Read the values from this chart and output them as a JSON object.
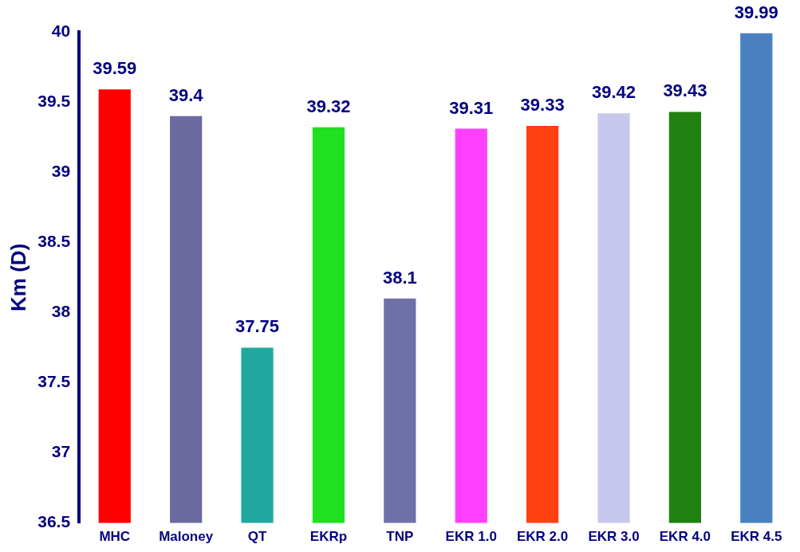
{
  "chart_data": {
    "type": "bar",
    "ylabel": "Km (D)",
    "categories": [
      "MHC",
      "Maloney",
      "QT",
      "EKRp",
      "TNP",
      "EKR 1.0",
      "EKR 2.0",
      "EKR 3.0",
      "EKR 4.0",
      "EKR 4.5"
    ],
    "values": [
      39.59,
      39.4,
      37.75,
      39.32,
      38.1,
      39.31,
      39.33,
      39.42,
      39.43,
      39.99
    ],
    "colors": [
      "#ff0000",
      "#6a6aa0",
      "#20a8a0",
      "#20e020",
      "#7070a8",
      "#ff40ff",
      "#ff4010",
      "#c8c8ee",
      "#208010",
      "#4a80c0"
    ],
    "ylim": [
      36.5,
      40
    ],
    "yticks": [
      36.5,
      37,
      37.5,
      38,
      38.5,
      39,
      39.5,
      40
    ],
    "grid": false,
    "legend": false,
    "data_labels": true
  }
}
